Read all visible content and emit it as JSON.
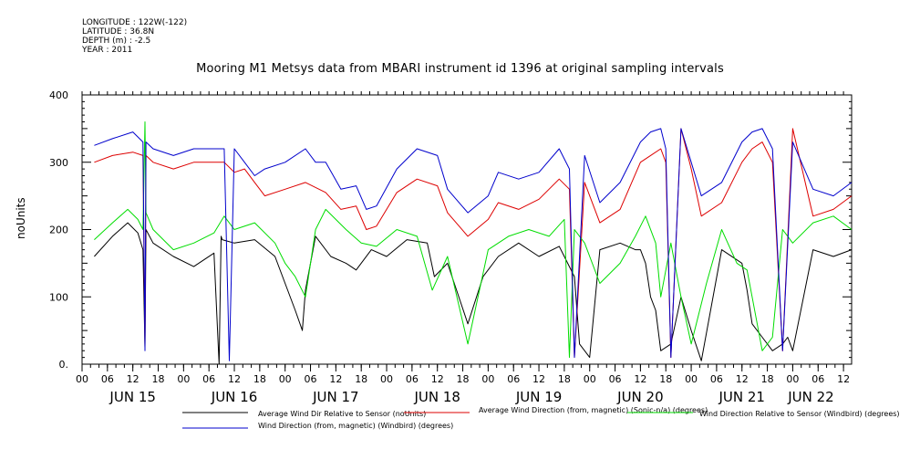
{
  "meta": {
    "longitude": "LONGITUDE : 122W(-122)",
    "latitude": "LATITUDE : 36.8N",
    "depth": "DEPTH (m) : -2.5",
    "year": "YEAR : 2011"
  },
  "chart_data": {
    "type": "line",
    "title": "Mooring M1 Metsys data from MBARI instrument id 1396 at original sampling intervals",
    "ylabel": "noUnits",
    "xlabel": "",
    "ylim": [
      0,
      400
    ],
    "yticks": [
      "0.",
      "100",
      "200",
      "300",
      "400"
    ],
    "grid": false,
    "legend_position": "bottom",
    "x_range_hours_june": [
      15.0,
      22.58
    ],
    "day_labels": [
      {
        "label": "JUN 15",
        "day": 15.5
      },
      {
        "label": "JUN 16",
        "day": 16.5
      },
      {
        "label": "JUN 17",
        "day": 17.5
      },
      {
        "label": "JUN 18",
        "day": 18.5
      },
      {
        "label": "JUN 19",
        "day": 19.5
      },
      {
        "label": "JUN 20",
        "day": 20.5
      },
      {
        "label": "JUN 21",
        "day": 21.5
      },
      {
        "label": "JUN 22",
        "day": 22.18
      }
    ],
    "hour_tick_labels": [
      "06",
      "12",
      "18",
      "00"
    ],
    "series": [
      {
        "name": "Average Wind Dir Relative to Sensor (noUnits)",
        "color": "#000000",
        "x": [
          15.12,
          15.3,
          15.45,
          15.55,
          15.6,
          15.62,
          15.63,
          15.7,
          15.9,
          16.1,
          16.3,
          16.35,
          16.37,
          16.38,
          16.5,
          16.7,
          16.9,
          17.0,
          17.1,
          17.17,
          17.2,
          17.3,
          17.45,
          17.6,
          17.7,
          17.85,
          18.0,
          18.2,
          18.4,
          18.47,
          18.6,
          18.8,
          18.95,
          19.1,
          19.3,
          19.5,
          19.7,
          19.85,
          19.9,
          20.0,
          20.1,
          20.3,
          20.45,
          20.5,
          20.55,
          20.6,
          20.65,
          20.7,
          20.8,
          20.9,
          21.0,
          21.1,
          21.3,
          21.5,
          21.55,
          21.6,
          21.7,
          21.8,
          21.9,
          21.95,
          22.0,
          22.2,
          22.4,
          22.58
        ],
        "y": [
          160,
          190,
          210,
          195,
          170,
          25,
          200,
          180,
          160,
          145,
          165,
          0,
          190,
          185,
          180,
          185,
          160,
          120,
          80,
          50,
          110,
          190,
          160,
          150,
          140,
          170,
          160,
          185,
          180,
          130,
          150,
          60,
          130,
          160,
          180,
          160,
          175,
          130,
          30,
          10,
          170,
          180,
          170,
          170,
          150,
          100,
          80,
          20,
          30,
          100,
          50,
          5,
          170,
          150,
          110,
          60,
          40,
          20,
          30,
          40,
          20,
          170,
          160,
          170
        ]
      },
      {
        "name": "Average Wind Direction (from, magnetic) (Sonic-n/a) (degrees)",
        "color": "#dd0000",
        "x": [
          15.12,
          15.3,
          15.5,
          15.6,
          15.62,
          15.63,
          15.7,
          15.9,
          16.1,
          16.3,
          16.4,
          16.5,
          16.6,
          16.7,
          16.8,
          17.0,
          17.2,
          17.4,
          17.55,
          17.7,
          17.8,
          17.9,
          18.1,
          18.3,
          18.5,
          18.6,
          18.8,
          19.0,
          19.1,
          19.3,
          19.5,
          19.7,
          19.8,
          19.85,
          19.95,
          20.1,
          20.3,
          20.5,
          20.6,
          20.7,
          20.75,
          20.8,
          20.9,
          21.0,
          21.1,
          21.3,
          21.5,
          21.6,
          21.7,
          21.8,
          21.9,
          22.0,
          22.2,
          22.4,
          22.58
        ],
        "y": [
          300,
          310,
          315,
          310,
          25,
          310,
          300,
          290,
          300,
          300,
          300,
          285,
          290,
          270,
          250,
          260,
          270,
          255,
          230,
          235,
          200,
          205,
          255,
          275,
          265,
          225,
          190,
          215,
          240,
          230,
          245,
          275,
          260,
          10,
          270,
          210,
          230,
          300,
          310,
          320,
          300,
          10,
          350,
          290,
          220,
          240,
          300,
          320,
          330,
          300,
          20,
          350,
          220,
          230,
          250
        ]
      },
      {
        "name": "Wind Direction Relative to Sensor (Windbird) (degrees)",
        "color": "#00dd00",
        "x": [
          15.12,
          15.3,
          15.45,
          15.55,
          15.6,
          15.62,
          15.63,
          15.7,
          15.9,
          16.1,
          16.3,
          16.4,
          16.5,
          16.7,
          16.9,
          17.0,
          17.1,
          17.2,
          17.3,
          17.4,
          17.6,
          17.75,
          17.9,
          18.1,
          18.3,
          18.45,
          18.6,
          18.8,
          19.0,
          19.2,
          19.4,
          19.6,
          19.75,
          19.8,
          19.85,
          19.95,
          20.1,
          20.3,
          20.45,
          20.55,
          20.65,
          20.7,
          20.8,
          20.9,
          21.0,
          21.15,
          21.3,
          21.45,
          21.55,
          21.6,
          21.7,
          21.8,
          21.9,
          22.0,
          22.2,
          22.4,
          22.58
        ],
        "y": [
          185,
          210,
          230,
          215,
          200,
          360,
          225,
          200,
          170,
          180,
          195,
          220,
          200,
          210,
          180,
          150,
          130,
          100,
          200,
          230,
          200,
          180,
          175,
          200,
          190,
          110,
          160,
          30,
          170,
          190,
          200,
          190,
          215,
          10,
          200,
          180,
          120,
          150,
          190,
          220,
          180,
          100,
          180,
          100,
          30,
          120,
          200,
          150,
          140,
          100,
          20,
          40,
          200,
          180,
          210,
          220,
          200
        ]
      },
      {
        "name": "Wind Direction (from, magnetic) (Windbird) (degrees)",
        "color": "#0000cc",
        "x": [
          15.12,
          15.3,
          15.5,
          15.6,
          15.62,
          15.63,
          15.7,
          15.9,
          16.1,
          16.3,
          16.4,
          16.45,
          16.5,
          16.6,
          16.7,
          16.8,
          17.0,
          17.2,
          17.3,
          17.4,
          17.55,
          17.7,
          17.8,
          17.9,
          18.1,
          18.3,
          18.5,
          18.6,
          18.8,
          19.0,
          19.1,
          19.3,
          19.5,
          19.7,
          19.8,
          19.85,
          19.95,
          20.1,
          20.3,
          20.5,
          20.6,
          20.7,
          20.75,
          20.8,
          20.9,
          21.0,
          21.1,
          21.3,
          21.5,
          21.6,
          21.7,
          21.8,
          21.9,
          22.0,
          22.2,
          22.4,
          22.58
        ],
        "y": [
          325,
          335,
          345,
          330,
          20,
          330,
          320,
          310,
          320,
          320,
          320,
          5,
          320,
          300,
          280,
          290,
          300,
          320,
          300,
          300,
          260,
          265,
          230,
          235,
          290,
          320,
          310,
          260,
          225,
          250,
          285,
          275,
          285,
          320,
          290,
          10,
          310,
          240,
          270,
          330,
          345,
          350,
          320,
          10,
          350,
          300,
          250,
          270,
          330,
          345,
          350,
          320,
          20,
          330,
          260,
          250,
          270
        ]
      }
    ]
  }
}
